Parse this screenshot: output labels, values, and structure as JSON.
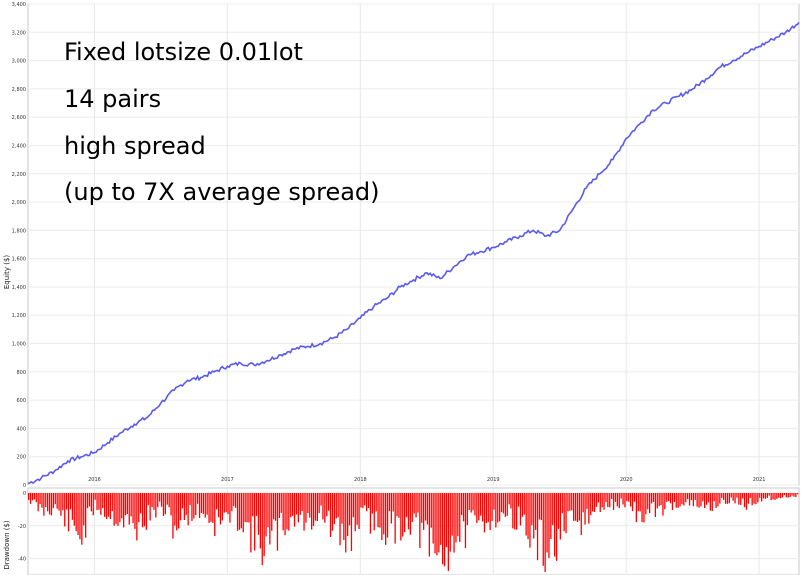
{
  "chart_data": [
    {
      "type": "line",
      "ylabel": "Equity ($)",
      "ylim": [
        0,
        3400
      ],
      "yticks": [
        0,
        200,
        400,
        600,
        800,
        1000,
        1200,
        1400,
        1600,
        1800,
        2000,
        2200,
        2400,
        2600,
        2800,
        3000,
        3200,
        3400
      ],
      "xlim": [
        2015.5,
        2021.3
      ],
      "xticks": [
        "2016",
        "2017",
        "2018",
        "2019",
        "2020",
        "2021"
      ],
      "grid": true,
      "annotations": [
        "Fixed lotsize 0.01lot",
        "14 pairs",
        "high spread",
        "(up to 7X average spread)"
      ],
      "series": [
        {
          "color": "#5a5af0",
          "x": [
            2015.5,
            2015.6,
            2015.7,
            2015.8,
            2015.9,
            2016.0,
            2016.1,
            2016.2,
            2016.3,
            2016.4,
            2016.5,
            2016.6,
            2016.7,
            2016.8,
            2016.9,
            2017.0,
            2017.1,
            2017.2,
            2017.3,
            2017.4,
            2017.5,
            2017.6,
            2017.7,
            2017.8,
            2017.9,
            2018.0,
            2018.1,
            2018.2,
            2018.3,
            2018.4,
            2018.5,
            2018.6,
            2018.7,
            2018.8,
            2018.9,
            2019.0,
            2019.1,
            2019.2,
            2019.3,
            2019.4,
            2019.5,
            2019.6,
            2019.7,
            2019.8,
            2019.9,
            2020.0,
            2020.1,
            2020.2,
            2020.3,
            2020.4,
            2020.5,
            2020.6,
            2020.7,
            2020.8,
            2020.9,
            2021.0,
            2021.1,
            2021.2,
            2021.3
          ],
          "values": [
            10,
            50,
            100,
            170,
            200,
            230,
            300,
            370,
            430,
            480,
            580,
            670,
            740,
            760,
            800,
            840,
            860,
            850,
            880,
            920,
            960,
            980,
            1000,
            1040,
            1100,
            1180,
            1260,
            1320,
            1400,
            1450,
            1500,
            1460,
            1540,
            1620,
            1650,
            1680,
            1720,
            1760,
            1800,
            1760,
            1800,
            1950,
            2100,
            2200,
            2300,
            2450,
            2550,
            2650,
            2700,
            2750,
            2800,
            2870,
            2950,
            3000,
            3050,
            3100,
            3150,
            3200,
            3270
          ]
        }
      ]
    },
    {
      "type": "bar",
      "ylabel": "Drawdown ($)",
      "ylim": [
        -50,
        0
      ],
      "yticks": [
        0,
        -20,
        -40
      ],
      "xlim": [
        2015.5,
        2021.3
      ],
      "grid": true,
      "series": [
        {
          "color": "#ff0000",
          "x": [
            2015.5,
            2015.6,
            2015.7,
            2015.8,
            2015.9,
            2016.0,
            2016.1,
            2016.2,
            2016.3,
            2016.4,
            2016.5,
            2016.6,
            2016.7,
            2016.8,
            2016.9,
            2017.0,
            2017.1,
            2017.2,
            2017.3,
            2017.4,
            2017.5,
            2017.6,
            2017.7,
            2017.8,
            2017.9,
            2018.0,
            2018.1,
            2018.2,
            2018.3,
            2018.4,
            2018.5,
            2018.6,
            2018.7,
            2018.8,
            2018.9,
            2019.0,
            2019.1,
            2019.2,
            2019.3,
            2019.4,
            2019.5,
            2019.6,
            2019.7,
            2019.8,
            2019.9,
            2020.0,
            2020.1,
            2020.2,
            2020.3,
            2020.4,
            2020.5,
            2020.6,
            2020.7,
            2020.8,
            2020.9,
            2021.0,
            2021.1,
            2021.2,
            2021.3
          ],
          "values": [
            -5,
            -15,
            -12,
            -25,
            -35,
            -10,
            -18,
            -22,
            -30,
            -20,
            -12,
            -28,
            -18,
            -15,
            -25,
            -20,
            -22,
            -38,
            -45,
            -30,
            -20,
            -25,
            -15,
            -35,
            -40,
            -18,
            -25,
            -30,
            -28,
            -22,
            -45,
            -55,
            -38,
            -30,
            -25,
            -20,
            -18,
            -22,
            -42,
            -50,
            -35,
            -28,
            -22,
            -12,
            -10,
            -8,
            -20,
            -15,
            -12,
            -8,
            -10,
            -12,
            -8,
            -6,
            -10,
            -5,
            -4,
            -3,
            -2
          ]
        }
      ]
    }
  ]
}
